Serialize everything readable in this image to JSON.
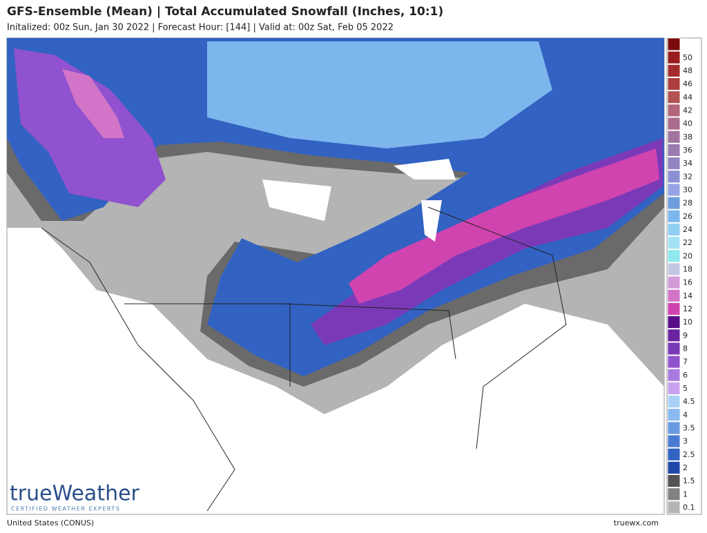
{
  "header": {
    "title": "GFS-Ensemble (Mean) | Total Accumulated Snowfall (Inches, 10:1)",
    "subtitle": "Initalized: 00z Sun, Jan 30 2022 | Forecast Hour: [144] | Valid at: 00z Sat, Feb 05 2022"
  },
  "legend": {
    "items": [
      {
        "label": null,
        "color": "#7a0c0c"
      },
      {
        "label": "50",
        "color": "#981c1c"
      },
      {
        "label": "48",
        "color": "#a42c2c"
      },
      {
        "label": "46",
        "color": "#ac3e3e"
      },
      {
        "label": "44",
        "color": "#b25252"
      },
      {
        "label": "42",
        "color": "#b2647a"
      },
      {
        "label": "40",
        "color": "#aa6c8e"
      },
      {
        "label": "38",
        "color": "#a274a0"
      },
      {
        "label": "36",
        "color": "#9a7cb0"
      },
      {
        "label": "34",
        "color": "#9284c0"
      },
      {
        "label": "32",
        "color": "#8c90d2"
      },
      {
        "label": "30",
        "color": "#96a2e2"
      },
      {
        "label": "28",
        "color": "#6e9ede"
      },
      {
        "label": "26",
        "color": "#7cb6ec"
      },
      {
        "label": "24",
        "color": "#90cef2"
      },
      {
        "label": "22",
        "color": "#a2e2f4"
      },
      {
        "label": "20",
        "color": "#8ee8ee"
      },
      {
        "label": "18",
        "color": "#c2c6e2"
      },
      {
        "label": "16",
        "color": "#d29ad8"
      },
      {
        "label": "14",
        "color": "#d274c8"
      },
      {
        "label": "12",
        "color": "#d044b0"
      },
      {
        "label": "10",
        "color": "#5a0c8a"
      },
      {
        "label": "9",
        "color": "#6a22a0"
      },
      {
        "label": "8",
        "color": "#7a3ab8"
      },
      {
        "label": "7",
        "color": "#9052ce"
      },
      {
        "label": "6",
        "color": "#a87ae0"
      },
      {
        "label": "5",
        "color": "#c8a2f0"
      },
      {
        "label": "4.5",
        "color": "#aad2f8"
      },
      {
        "label": "4",
        "color": "#8abaf0"
      },
      {
        "label": "3.5",
        "color": "#6a9ae2"
      },
      {
        "label": "3",
        "color": "#4a7ad2"
      },
      {
        "label": "2.5",
        "color": "#3262c2"
      },
      {
        "label": "2",
        "color": "#2048a8"
      },
      {
        "label": "1.5",
        "color": "#525252"
      },
      {
        "label": "1",
        "color": "#828282"
      },
      {
        "label": "0.1",
        "color": "#b4b4b4"
      }
    ]
  },
  "logo": {
    "name": "trueWeather",
    "tagline": "CERTIFIED WEATHER EXPERTS"
  },
  "footer": {
    "region": "United States (CONUS)",
    "site": "truewx.com"
  }
}
